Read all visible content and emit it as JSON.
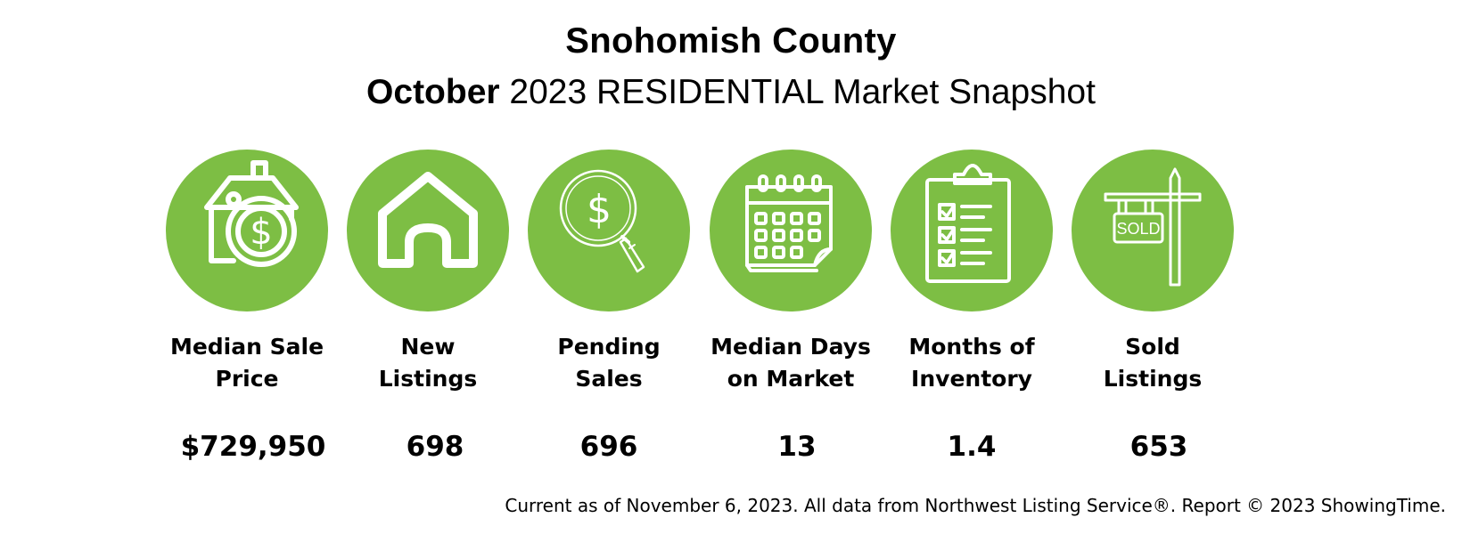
{
  "header": {
    "title": "Snohomish County",
    "subtitle_month": "October",
    "subtitle_rest": " 2023 RESIDENTIAL Market Snapshot"
  },
  "accent_color": "#7dbe44",
  "stats": [
    {
      "label": "Median Sale\nPrice",
      "value": "$729,950",
      "icon": "house-dollar-icon"
    },
    {
      "label": "New\nListings",
      "value": "698",
      "icon": "house-icon"
    },
    {
      "label": "Pending\nSales",
      "value": "696",
      "icon": "magnifier-dollar-icon"
    },
    {
      "label": "Median Days\non Market",
      "value": "13",
      "icon": "calendar-icon"
    },
    {
      "label": "Months of\nInventory",
      "value": "1.4",
      "icon": "clipboard-checklist-icon"
    },
    {
      "label": "Sold\nListings",
      "value": "653",
      "icon": "sold-sign-icon"
    }
  ],
  "sold_sign_text": "SOLD",
  "footer": "Current as of November 6, 2023. All data from Northwest Listing Service®. Report © 2023 ShowingTime."
}
